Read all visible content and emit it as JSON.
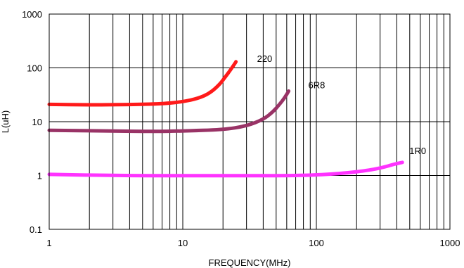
{
  "chart_data": {
    "type": "line",
    "title": "",
    "xlabel": "FREQUENCY(MHz)",
    "ylabel": "L(uH)",
    "x_scale": "log",
    "y_scale": "log",
    "xlim": [
      1,
      1000
    ],
    "ylim": [
      0.1,
      1000
    ],
    "x_ticks": [
      {
        "value": 1,
        "label": "1"
      },
      {
        "value": 10,
        "label": "10"
      },
      {
        "value": 100,
        "label": "100"
      },
      {
        "value": 1000,
        "label": "1000"
      }
    ],
    "y_ticks": [
      {
        "value": 0.1,
        "label": "0.1"
      },
      {
        "value": 1,
        "label": "1"
      },
      {
        "value": 10,
        "label": "10"
      },
      {
        "value": 100,
        "label": "100"
      },
      {
        "value": 1000,
        "label": "1000"
      }
    ],
    "grid": true,
    "series": [
      {
        "name": "220",
        "color": "#ff1a1a",
        "x": [
          1,
          2,
          4,
          7,
          10,
          13,
          16,
          19,
          21,
          23,
          25
        ],
        "y": [
          21,
          20.5,
          20.8,
          21.5,
          23.5,
          27,
          34,
          50,
          70,
          95,
          130
        ]
      },
      {
        "name": "6R8",
        "color": "#993366",
        "x": [
          1,
          3,
          6,
          10,
          20,
          30,
          40,
          47,
          53,
          58,
          62
        ],
        "y": [
          6.9,
          6.7,
          6.6,
          6.7,
          7.1,
          8.3,
          11,
          15,
          21,
          28,
          37
        ]
      },
      {
        "name": "1R0",
        "color": "#ff33ff",
        "x": [
          1,
          3,
          10,
          30,
          80,
          150,
          250,
          330,
          380,
          440
        ],
        "y": [
          1.05,
          1.0,
          0.99,
          0.99,
          1.0,
          1.08,
          1.25,
          1.45,
          1.62,
          1.75
        ]
      }
    ]
  }
}
